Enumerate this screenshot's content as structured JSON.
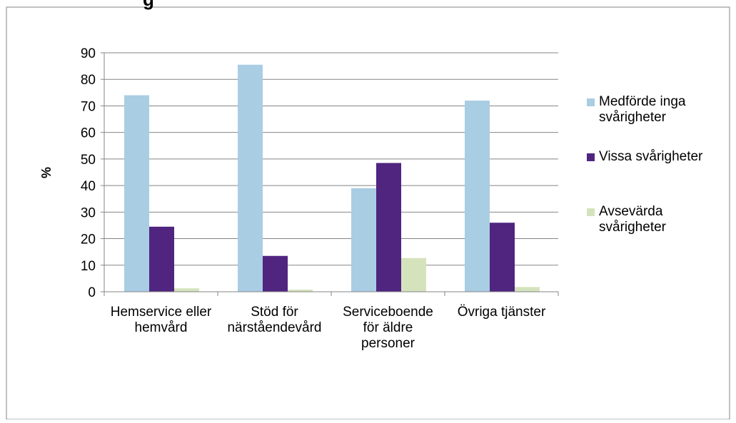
{
  "chart_data": {
    "type": "bar",
    "title": "g",
    "ylabel": "%",
    "ylim": [
      0,
      90
    ],
    "yticks": [
      0,
      10,
      20,
      30,
      40,
      50,
      60,
      70,
      80,
      90
    ],
    "grid": true,
    "legend_position": "right",
    "categories": [
      [
        "Hemservice eller",
        "hemvård"
      ],
      [
        "Stöd för",
        "närståendevård"
      ],
      [
        "Serviceboende",
        "för äldre",
        "personer"
      ],
      [
        "Övriga tjänster"
      ]
    ],
    "series": [
      {
        "name": [
          "Medförde inga",
          "svårigheter"
        ],
        "color": "#a9cde3",
        "values": [
          74,
          85.5,
          39,
          72
        ]
      },
      {
        "name": [
          "Vissa svårigheter"
        ],
        "color": "#4f2580",
        "values": [
          24.5,
          13.5,
          48.5,
          26
        ]
      },
      {
        "name": [
          "Avsevärda",
          "svårigheter"
        ],
        "color": "#d5e3bd",
        "values": [
          1.3,
          0.8,
          12.7,
          1.8
        ]
      }
    ]
  }
}
